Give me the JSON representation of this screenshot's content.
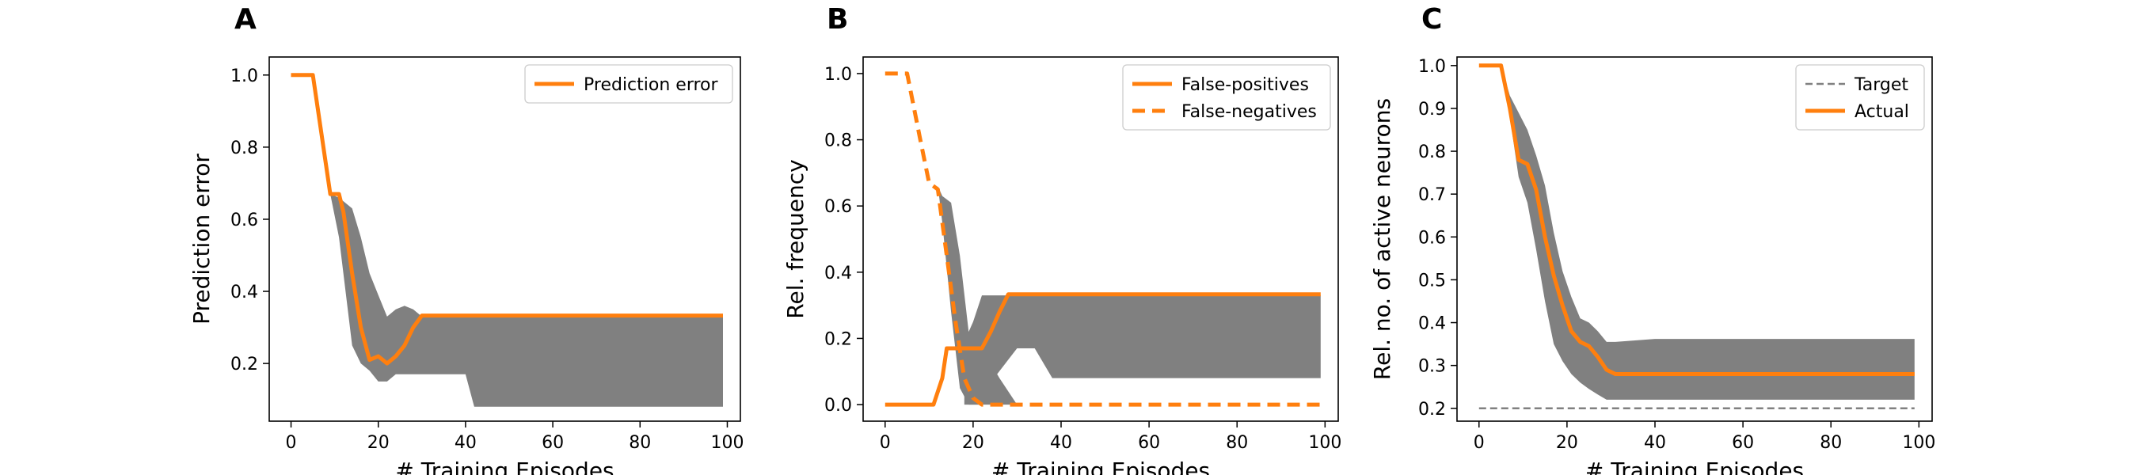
{
  "figure": {
    "panels": [
      {
        "letter": "A"
      },
      {
        "letter": "B"
      },
      {
        "letter": "C"
      }
    ]
  },
  "chart_data": [
    {
      "panel": "A",
      "type": "line",
      "xlabel": "# Training Episodes",
      "ylabel": "Prediction error",
      "xlim": [
        -5,
        103
      ],
      "ylim": [
        0.04,
        1.05
      ],
      "xticks": [
        0,
        20,
        40,
        60,
        80,
        100
      ],
      "yticks": [
        0.2,
        0.4,
        0.6,
        0.8,
        1.0
      ],
      "ytick_labels": [
        "0.2",
        "0.4",
        "0.6",
        "0.8",
        "1.0"
      ],
      "legend_position": "top-right",
      "bands": [
        {
          "color": "#808080",
          "x": [
            9,
            11,
            14,
            16,
            18,
            20,
            22,
            24,
            26,
            28,
            30,
            40,
            42,
            99
          ],
          "upper": [
            0.67,
            0.66,
            0.63,
            0.55,
            0.45,
            0.39,
            0.33,
            0.35,
            0.36,
            0.35,
            0.33,
            0.33,
            0.33,
            0.33
          ],
          "lower": [
            0.67,
            0.55,
            0.25,
            0.2,
            0.18,
            0.15,
            0.15,
            0.17,
            0.17,
            0.17,
            0.17,
            0.17,
            0.08,
            0.08
          ]
        }
      ],
      "series": [
        {
          "name": "Prediction error",
          "color": "#ff7f0e",
          "style": "solid",
          "x": [
            0,
            5,
            9,
            11,
            12,
            14,
            16,
            18,
            20,
            22,
            24,
            26,
            28,
            30,
            99
          ],
          "y": [
            1.0,
            1.0,
            0.67,
            0.67,
            0.62,
            0.45,
            0.3,
            0.21,
            0.22,
            0.2,
            0.22,
            0.25,
            0.3,
            0.333,
            0.333
          ]
        }
      ]
    },
    {
      "panel": "B",
      "type": "line",
      "xlabel": "# Training Episodes",
      "ylabel": "Rel. frequency",
      "xlim": [
        -5,
        103
      ],
      "ylim": [
        -0.05,
        1.05
      ],
      "xticks": [
        0,
        20,
        40,
        60,
        80,
        100
      ],
      "yticks": [
        0.0,
        0.2,
        0.4,
        0.6,
        0.8,
        1.0
      ],
      "ytick_labels": [
        "0.0",
        "0.2",
        "0.4",
        "0.6",
        "0.8",
        "1.0"
      ],
      "legend_position": "top-right",
      "bands": [
        {
          "color": "#808080",
          "x": [
            10,
            12,
            13,
            15,
            17,
            19,
            20,
            22,
            23,
            30,
            33,
            34,
            38,
            40,
            99
          ],
          "upper": [
            0.67,
            0.66,
            0.63,
            0.61,
            0.45,
            0.22,
            0.25,
            0.33,
            0.33,
            0.33,
            0.33,
            0.33,
            0.33,
            0.33,
            0.33
          ],
          "lower": [
            0.67,
            0.66,
            0.55,
            0.28,
            0.05,
            0.0,
            0.0,
            0.0,
            0.05,
            0.17,
            0.17,
            0.17,
            0.08,
            0.08,
            0.08
          ]
        },
        {
          "color": "#808080",
          "x": [
            18,
            22,
            26,
            28,
            30
          ],
          "upper": [
            0.17,
            0.17,
            0.08,
            0.04,
            0.0
          ],
          "lower": [
            0.0,
            0.0,
            0.0,
            0.0,
            0.0
          ]
        }
      ],
      "series": [
        {
          "name": "False-positives",
          "color": "#ff7f0e",
          "style": "solid",
          "x": [
            0,
            11,
            13,
            14,
            16,
            22,
            24,
            26,
            28,
            99
          ],
          "y": [
            0.0,
            0.0,
            0.08,
            0.17,
            0.17,
            0.17,
            0.22,
            0.28,
            0.333,
            0.333
          ]
        },
        {
          "name": "False-negatives",
          "color": "#ff7f0e",
          "style": "dashed",
          "x": [
            0,
            5,
            8,
            10,
            12,
            14,
            16,
            18,
            20,
            22,
            99
          ],
          "y": [
            1.0,
            1.0,
            0.8,
            0.67,
            0.65,
            0.45,
            0.25,
            0.08,
            0.02,
            0.0,
            0.0
          ]
        }
      ]
    },
    {
      "panel": "C",
      "type": "line",
      "xlabel": "# Training Episodes",
      "ylabel": "Rel. no. of active neurons",
      "xlim": [
        -5,
        103
      ],
      "ylim": [
        0.17,
        1.02
      ],
      "xticks": [
        0,
        20,
        40,
        60,
        80,
        100
      ],
      "yticks": [
        0.2,
        0.3,
        0.4,
        0.5,
        0.6,
        0.7,
        0.8,
        0.9,
        1.0
      ],
      "ytick_labels": [
        "0.2",
        "0.3",
        "0.4",
        "0.5",
        "0.6",
        "0.7",
        "0.8",
        "0.9",
        "1.0"
      ],
      "legend_position": "top-right",
      "bands": [
        {
          "color": "#808080",
          "x": [
            5,
            7,
            9,
            11,
            13,
            15,
            17,
            19,
            21,
            23,
            25,
            27,
            29,
            31,
            40,
            99
          ],
          "upper": [
            1.0,
            0.93,
            0.89,
            0.85,
            0.79,
            0.72,
            0.61,
            0.52,
            0.46,
            0.41,
            0.4,
            0.38,
            0.355,
            0.355,
            0.362,
            0.362
          ],
          "lower": [
            1.0,
            0.88,
            0.74,
            0.68,
            0.57,
            0.45,
            0.35,
            0.31,
            0.28,
            0.26,
            0.245,
            0.232,
            0.22,
            0.22,
            0.22,
            0.22
          ]
        }
      ],
      "series": [
        {
          "name": "Target",
          "color": "#808080",
          "style": "dashed",
          "x": [
            0,
            99
          ],
          "y": [
            0.2,
            0.2
          ]
        },
        {
          "name": "Actual",
          "color": "#ff7f0e",
          "style": "solid",
          "x": [
            0,
            5,
            7,
            9,
            11,
            13,
            15,
            17,
            19,
            21,
            23,
            25,
            27,
            29,
            31,
            99
          ],
          "y": [
            1.0,
            1.0,
            0.9,
            0.78,
            0.77,
            0.71,
            0.6,
            0.51,
            0.44,
            0.38,
            0.355,
            0.345,
            0.32,
            0.29,
            0.28,
            0.28
          ]
        }
      ]
    }
  ]
}
